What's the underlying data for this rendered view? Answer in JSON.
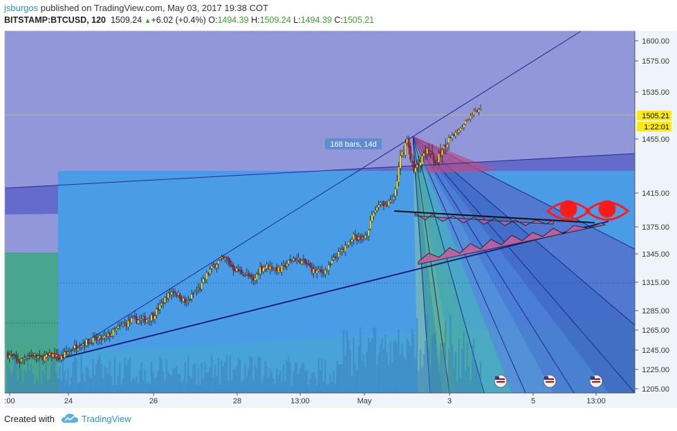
{
  "header": {
    "username": "jsburgos",
    "published_text": " published on TradingView.com, May 03, 2017 19:38 COT",
    "symbol": "BITSTAMP:BTCUSD, 120",
    "last": "1509.24",
    "change": "+6.02 (+0.4%)",
    "o_label": "O:",
    "o_value": "1494.39",
    "h_label": "H:",
    "h_value": "1509.24",
    "l_label": "L:",
    "l_value": "1494.39",
    "c_label": "C:",
    "c_value": "1505.21"
  },
  "footer": {
    "created_with": "Created with",
    "brand": "TradingView"
  },
  "colors": {
    "up": "#f5e21b",
    "down": "#c8102e",
    "price_tag": "#ffeb00"
  },
  "chart_data": {
    "type": "candlestick",
    "symbol": "BITSTAMP:BTCUSD",
    "interval": "120",
    "ylim": [
      1200,
      1620
    ],
    "y_ticks": [
      "1600.00",
      "1575.00",
      "1535.00",
      "1455.00",
      "1415.00",
      "1375.00",
      "1345.00",
      "1315.00",
      "1285.00",
      "1265.00",
      "1245.00",
      "1225.00",
      "1205.00"
    ],
    "x_tick_labels": [
      ":00",
      "24",
      "26",
      "28",
      "13:00",
      "May",
      "3",
      "5",
      "13:00"
    ],
    "current_price": "1505.21",
    "countdown": "1:22:01",
    "range_label": "168 bars, 14d",
    "close_path": [
      [
        0,
        1241
      ],
      [
        4,
        1238
      ],
      [
        8,
        1233
      ],
      [
        12,
        1239
      ],
      [
        16,
        1240
      ],
      [
        20,
        1237
      ],
      [
        24,
        1238
      ],
      [
        28,
        1240
      ],
      [
        32,
        1236
      ],
      [
        36,
        1242
      ],
      [
        40,
        1247
      ],
      [
        44,
        1250
      ],
      [
        48,
        1253
      ],
      [
        52,
        1255
      ],
      [
        56,
        1256
      ],
      [
        60,
        1258
      ],
      [
        64,
        1263
      ],
      [
        68,
        1268
      ],
      [
        72,
        1272
      ],
      [
        76,
        1276
      ],
      [
        80,
        1275
      ],
      [
        84,
        1276
      ],
      [
        88,
        1280
      ],
      [
        92,
        1289
      ],
      [
        96,
        1300
      ],
      [
        100,
        1306
      ],
      [
        104,
        1300
      ],
      [
        108,
        1292
      ],
      [
        112,
        1303
      ],
      [
        116,
        1309
      ],
      [
        120,
        1323
      ],
      [
        124,
        1332
      ],
      [
        128,
        1339
      ],
      [
        132,
        1339
      ],
      [
        136,
        1330
      ],
      [
        140,
        1326
      ],
      [
        144,
        1323
      ],
      [
        148,
        1316
      ],
      [
        152,
        1330
      ],
      [
        156,
        1332
      ],
      [
        160,
        1330
      ],
      [
        164,
        1328
      ],
      [
        168,
        1335
      ],
      [
        172,
        1340
      ],
      [
        176,
        1338
      ],
      [
        180,
        1334
      ],
      [
        184,
        1327
      ],
      [
        188,
        1326
      ],
      [
        192,
        1328
      ],
      [
        196,
        1339
      ],
      [
        200,
        1347
      ],
      [
        204,
        1355
      ],
      [
        208,
        1365
      ],
      [
        212,
        1360
      ],
      [
        216,
        1368
      ],
      [
        220,
        1392
      ],
      [
        224,
        1405
      ],
      [
        228,
        1400
      ],
      [
        232,
        1410
      ],
      [
        236,
        1440
      ],
      [
        240,
        1455
      ],
      [
        244,
        1430
      ],
      [
        248,
        1440
      ],
      [
        252,
        1450
      ],
      [
        256,
        1438
      ],
      [
        260,
        1444
      ],
      [
        264,
        1452
      ],
      [
        268,
        1462
      ],
      [
        272,
        1475
      ],
      [
        276,
        1488
      ],
      [
        280,
        1500
      ],
      [
        284,
        1505
      ]
    ]
  }
}
